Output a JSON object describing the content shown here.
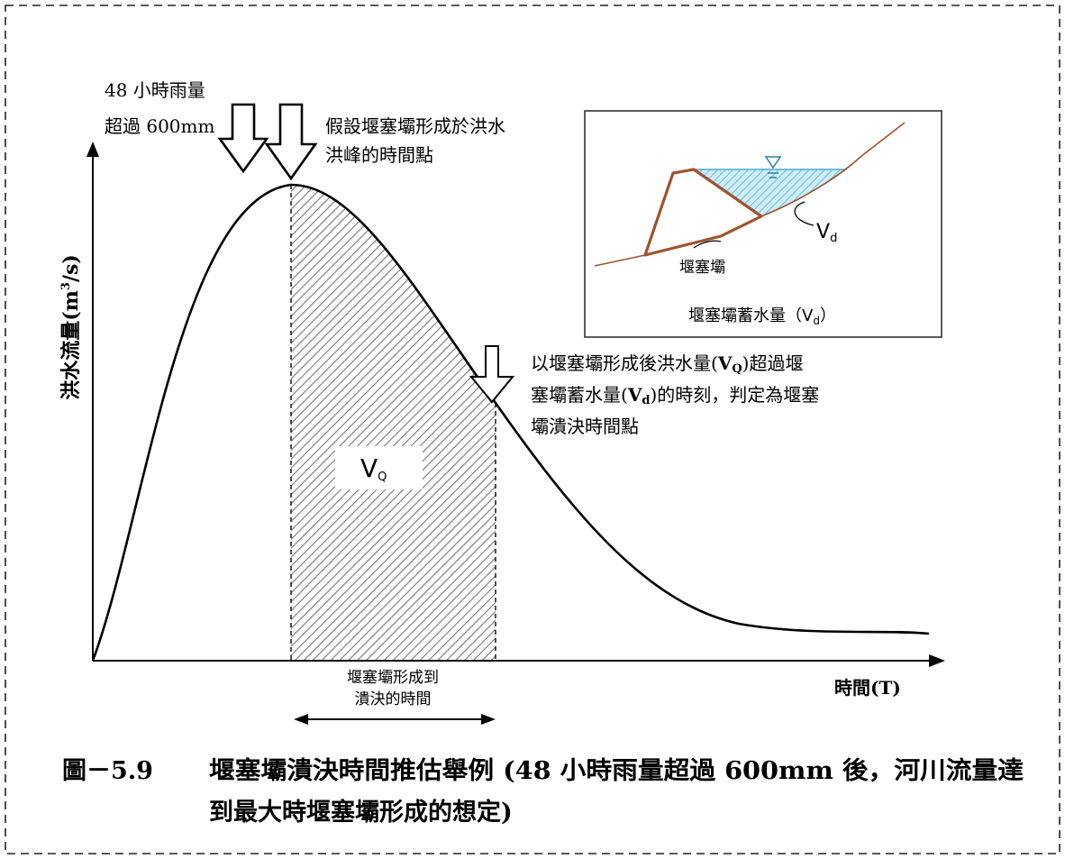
{
  "annotations": {
    "rainfall_line1": "48 小時雨量",
    "rainfall_line2": "超過 600mm",
    "assumption_line1": "假設堰塞壩形成於洪水",
    "assumption_line2": "洪峰的時間點",
    "judgement_line1_a": "以堰塞壩形成後洪水量(",
    "judgement_line1_sym": "V",
    "judgement_line1_sub": "Q",
    "judgement_line1_b": ")超過堰",
    "judgement_line2_a": "塞壩蓄水量(",
    "judgement_line2_sym": "V",
    "judgement_line2_sub": "d",
    "judgement_line2_b": ")的時刻，判定為堰塞",
    "judgement_line3": "壩潰決時間點",
    "vq_symbol": "V",
    "vq_sub": "Q",
    "duration_line1": "堰塞壩形成到",
    "duration_line2": "潰決的時間"
  },
  "axes": {
    "y_label": "洪水流量(m",
    "y_label_sup": "3",
    "y_label_tail": "/s)",
    "x_label": "時間(T)"
  },
  "inset": {
    "vd_symbol": "V",
    "vd_sub": "d",
    "dam_label": "堰塞壩",
    "caption_a": "堰塞壩蓄水量（V",
    "caption_sub": "d",
    "caption_b": "）"
  },
  "figure_caption": {
    "number": "圖－5.9",
    "line1": "堰塞壩潰決時間推估舉例 (48 小時雨量超過 600mm 後，河川流量達",
    "line2": "到最大時堰塞壩形成的想定)"
  },
  "colors": {
    "dam": "#a0522d",
    "water": "#bfe6f5",
    "water_hatch": "#4aa8d0",
    "hatch": "#888888"
  }
}
